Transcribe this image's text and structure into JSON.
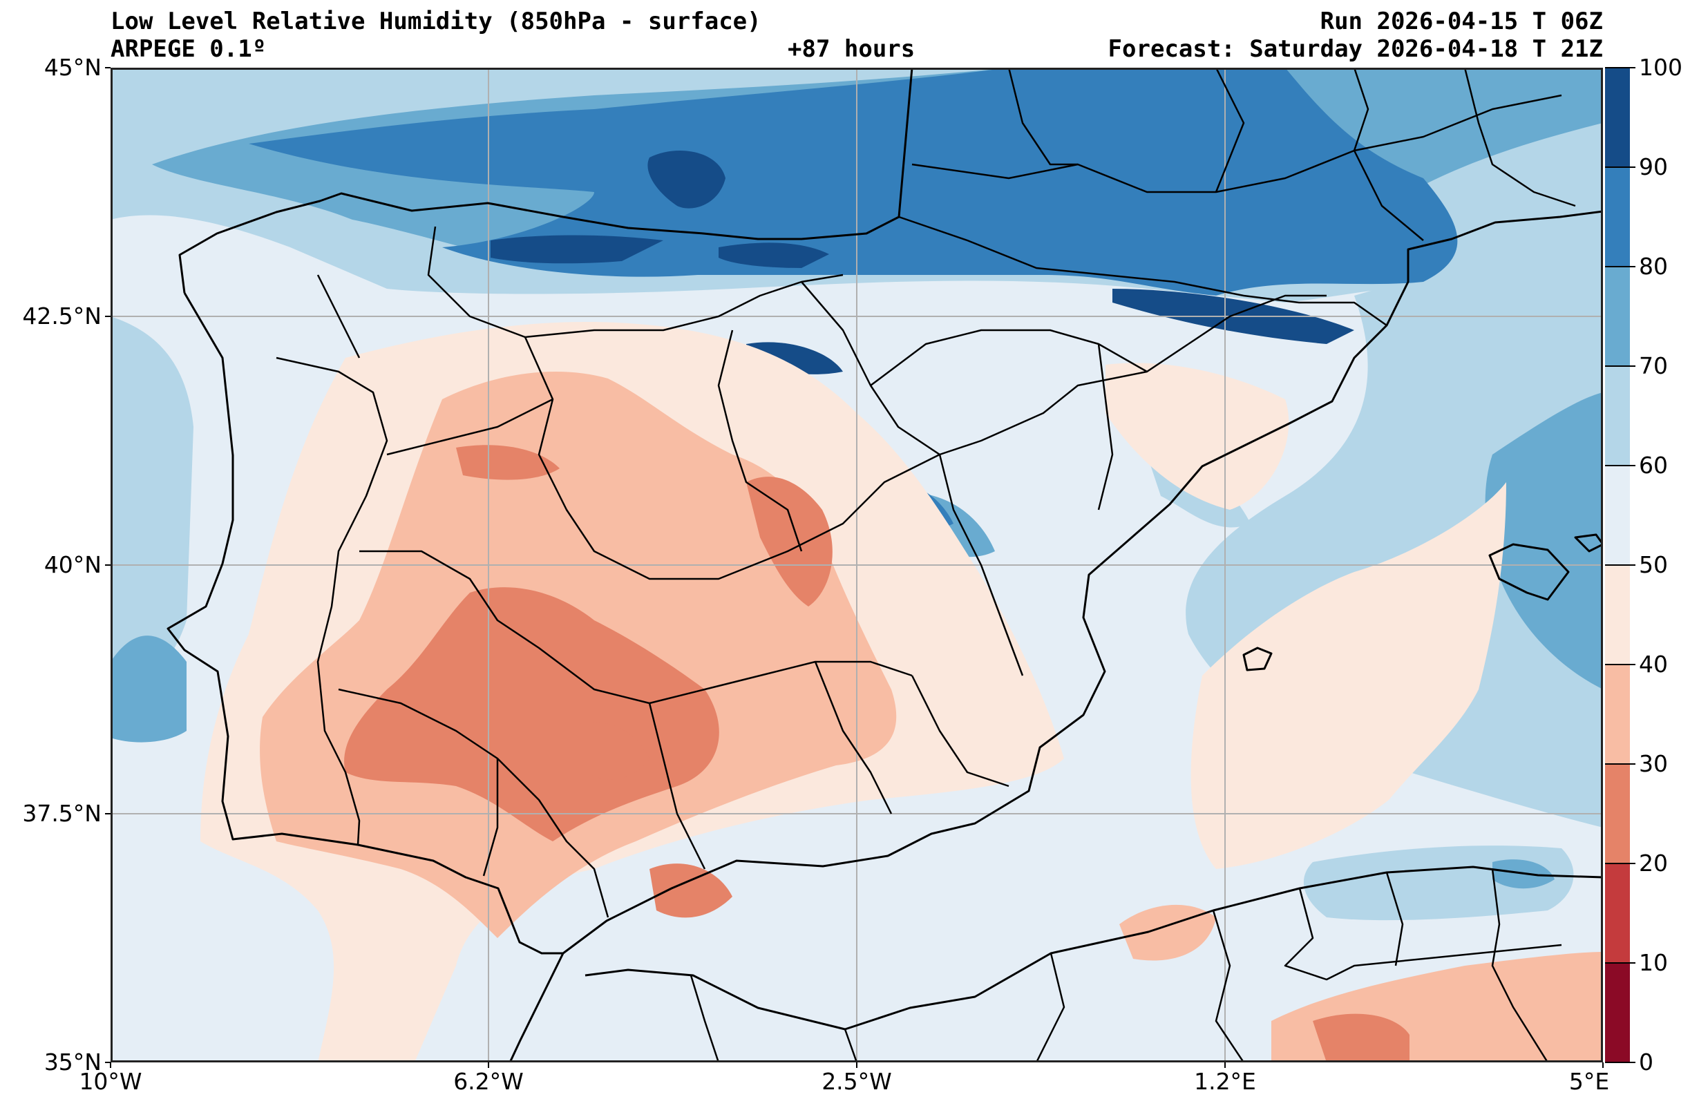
{
  "header": {
    "title": "Low Level Relative Humidity (850hPa - surface)",
    "model": "ARPEGE 0.1º",
    "lead_time": "+87 hours",
    "run": "Run 2026-04-15 T 06Z",
    "forecast": "Forecast: Saturday 2026-04-18 T 21Z"
  },
  "axes": {
    "lat_ticks": [
      "45°N",
      "42.5°N",
      "40°N",
      "37.5°N",
      "35°N"
    ],
    "lon_ticks": [
      "10°W",
      "6.2°W",
      "2.5°W",
      "1.2°E",
      "5°E"
    ]
  },
  "colorbar": {
    "ticks": [
      "100",
      "90",
      "80",
      "70",
      "60",
      "50",
      "40",
      "30",
      "20",
      "10",
      "0"
    ],
    "levels": [
      0,
      10,
      20,
      30,
      40,
      50,
      60,
      70,
      80,
      90,
      100
    ],
    "colors": [
      "#8b0a26",
      "#c43b3d",
      "#e58368",
      "#f8bda4",
      "#fbe8dd",
      "#e5eef6",
      "#b4d6e8",
      "#69abd0",
      "#347fbb",
      "#154c88"
    ]
  },
  "chart_data": {
    "type": "heatmap",
    "title": "Low Level Relative Humidity (850hPa - surface)",
    "xlabel": "",
    "ylabel": "",
    "xlim": [
      -10,
      5
    ],
    "ylim": [
      35,
      45
    ],
    "x_ticks": [
      -10,
      -6.2,
      -2.5,
      1.2,
      5
    ],
    "y_ticks": [
      35,
      37.5,
      40,
      42.5,
      45
    ],
    "grid": true,
    "colorbar_range": [
      0,
      100
    ],
    "colorbar_placement": "right"
  }
}
